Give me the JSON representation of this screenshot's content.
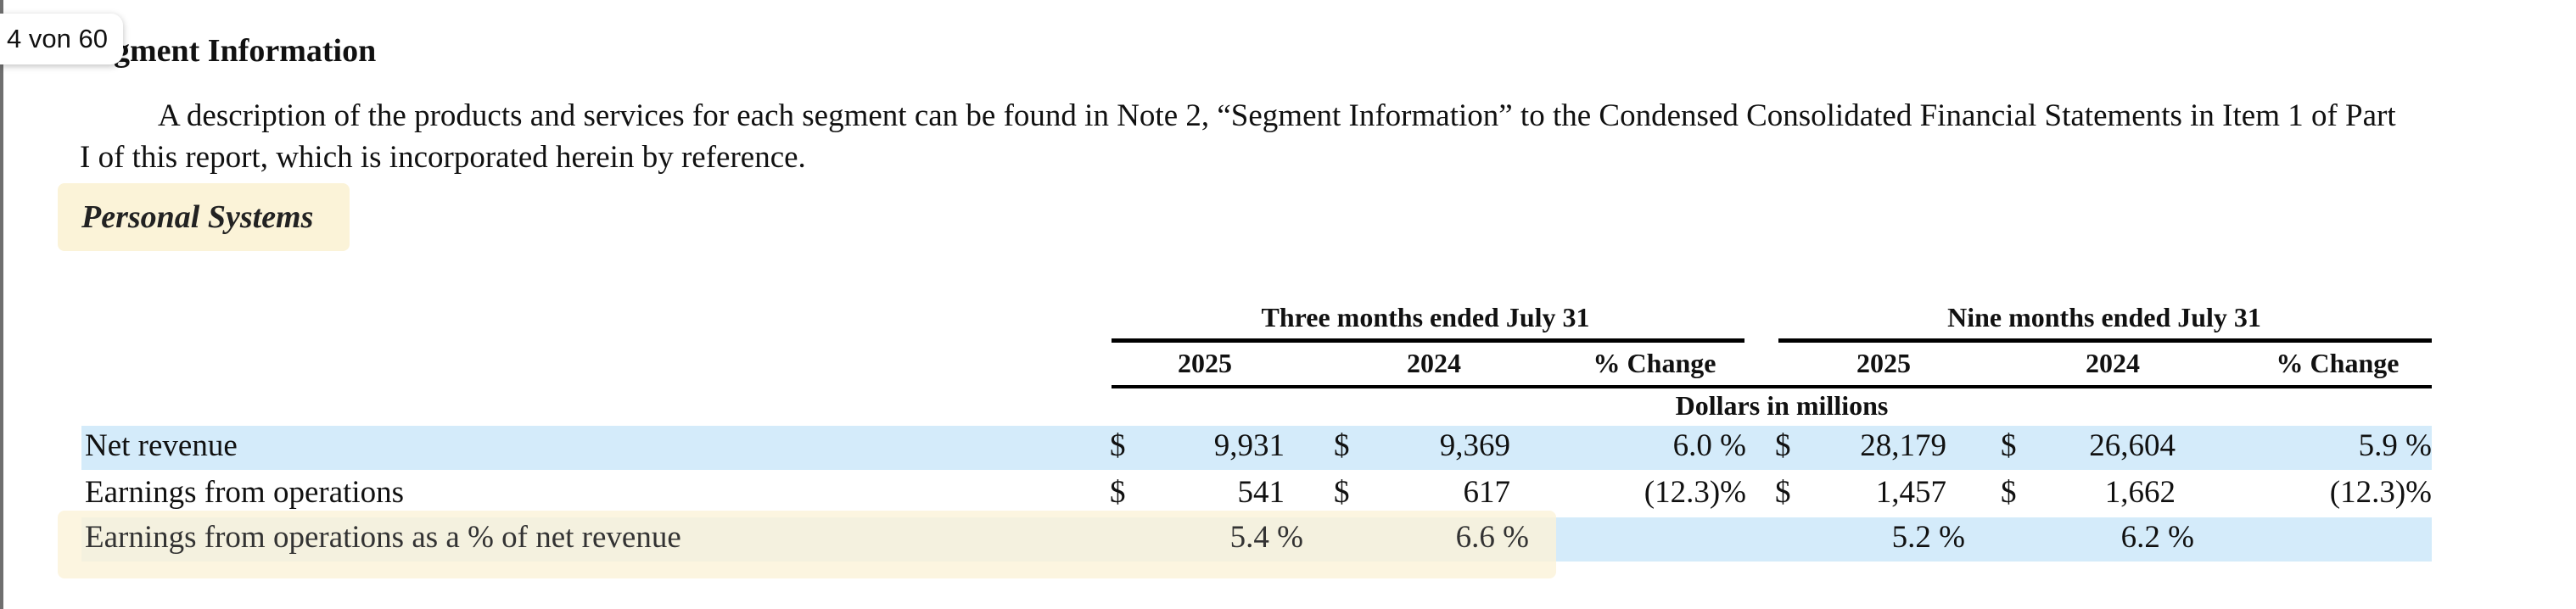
{
  "page_indicator": "4 von 60",
  "heading": "Segment Information",
  "intro": "A description of the products and services for each segment can be found in Note 2, “Segment Information” to the Condensed Consolidated Financial Statements in Item 1 of Part I of this report, which is incorporated herein by reference.",
  "section_title": "Personal Systems",
  "table": {
    "group_headers": [
      "Three months ended July 31",
      "Nine months ended July 31"
    ],
    "column_headers": [
      "2025",
      "2024",
      "% Change",
      "2025",
      "2024",
      "% Change"
    ],
    "units": "Dollars in millions",
    "rows": [
      {
        "label": "Net revenue",
        "q25_sym": "$",
        "q25": "9,931",
        "q24_sym": "$",
        "q24": "9,369",
        "q_change": "6.0 %",
        "n25_sym": "$",
        "n25": "28,179",
        "n24_sym": "$",
        "n24": "26,604",
        "n_change": "5.9 %"
      },
      {
        "label": "Earnings from operations",
        "q25_sym": "$",
        "q25": "541",
        "q24_sym": "$",
        "q24": "617",
        "q_change": "(12.3)%",
        "n25_sym": "$",
        "n25": "1,457",
        "n24_sym": "$",
        "n24": "1,662",
        "n_change": "(12.3)%"
      },
      {
        "label": "Earnings from operations as a % of net revenue",
        "q25": "5.4 %",
        "q24": "6.6 %",
        "n25": "5.2 %",
        "n24": "6.2 %"
      }
    ]
  },
  "colors": {
    "row_highlight": "#d4ebfa",
    "text_highlight": "#fbf3d8"
  }
}
